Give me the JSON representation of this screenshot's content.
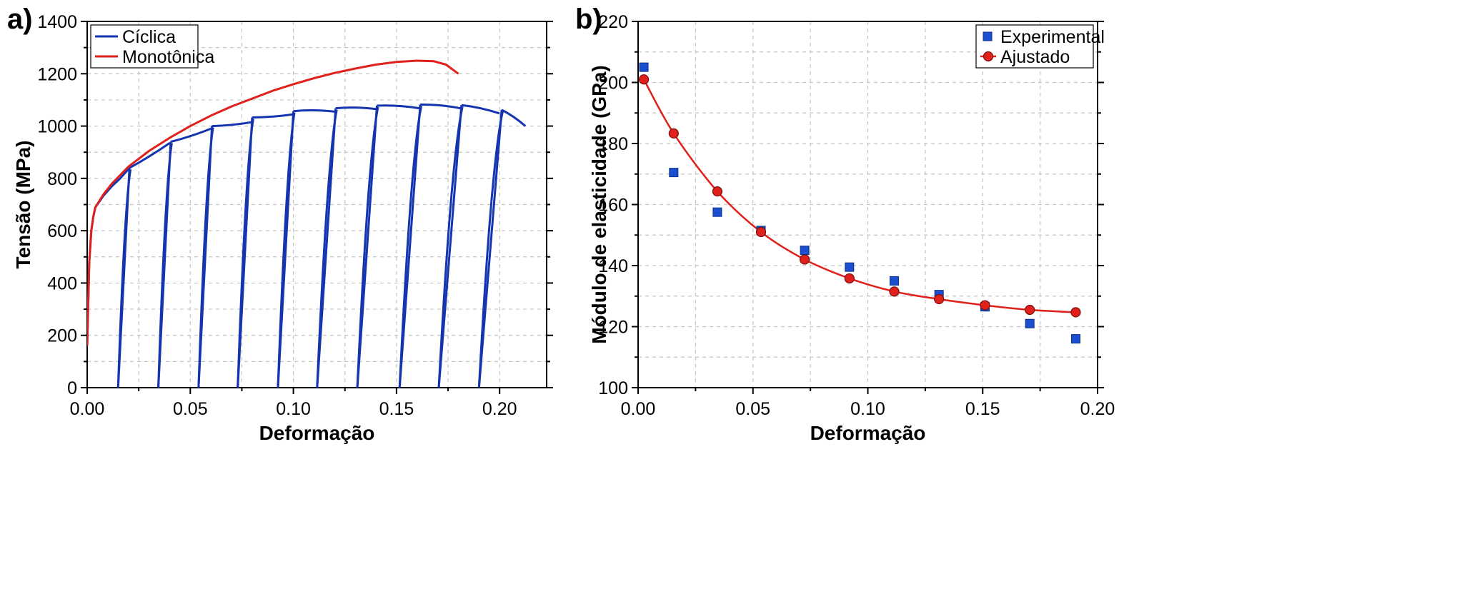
{
  "chart_data": [
    {
      "id": "a",
      "panel_label": "a)",
      "type": "line",
      "title": "",
      "xlabel": "Deformação",
      "ylabel": "Tensão (MPa)",
      "xlim": [
        0,
        0.2228
      ],
      "ylim": [
        0,
        1400
      ],
      "xticks": [
        0,
        0.05,
        0.1,
        0.15,
        0.2
      ],
      "xtick_labels": [
        "0.00",
        "0.05",
        "0.10",
        "0.15",
        "0.20"
      ],
      "yticks": [
        0,
        200,
        400,
        600,
        800,
        1000,
        1200,
        1400
      ],
      "ytick_labels": [
        "0",
        "200",
        "400",
        "600",
        "800",
        "1000",
        "1200",
        "1400"
      ],
      "grid": true,
      "legend_position": "top-left",
      "series": [
        {
          "name": "Cíclica",
          "color": "#1535b0",
          "style": "line",
          "envelope": {
            "x": [
              0,
              0.001,
              0.002,
              0.003,
              0.004,
              0.006,
              0.008,
              0.012,
              0.016,
              0.0205
            ],
            "y": [
              160,
              480,
              600,
              655,
              690,
              712,
              735,
              770,
              800,
              840
            ]
          },
          "cycles": [
            {
              "unload_x": 0.0205,
              "zero_x": 0.015,
              "peak": 840,
              "next_x": 0.04,
              "next_y": 935
            },
            {
              "unload_x": 0.0405,
              "zero_x": 0.0345,
              "peak": 940,
              "next_x": 0.06,
              "next_y": 990
            },
            {
              "unload_x": 0.0605,
              "zero_x": 0.054,
              "peak": 1000,
              "next_x": 0.08,
              "next_y": 1015
            },
            {
              "unload_x": 0.08,
              "zero_x": 0.073,
              "peak": 1033,
              "next_x": 0.1,
              "next_y": 1045
            },
            {
              "unload_x": 0.1,
              "zero_x": 0.0925,
              "peak": 1057,
              "next_x": 0.12,
              "next_y": 1055
            },
            {
              "unload_x": 0.1205,
              "zero_x": 0.1115,
              "peak": 1068,
              "next_x": 0.14,
              "next_y": 1065
            },
            {
              "unload_x": 0.1405,
              "zero_x": 0.131,
              "peak": 1078,
              "next_x": 0.161,
              "next_y": 1068
            },
            {
              "unload_x": 0.1615,
              "zero_x": 0.1515,
              "peak": 1082,
              "next_x": 0.181,
              "next_y": 1068
            },
            {
              "unload_x": 0.1815,
              "zero_x": 0.1705,
              "peak": 1080,
              "next_x": 0.2,
              "next_y": 1048
            },
            {
              "unload_x": 0.201,
              "zero_x": 0.19,
              "peak": 1062,
              "next_x": 0.2125,
              "next_y": 1000
            }
          ]
        },
        {
          "name": "Monotônica",
          "color": "#e0201b",
          "style": "line",
          "x": [
            0,
            0.001,
            0.002,
            0.003,
            0.004,
            0.006,
            0.008,
            0.012,
            0.02,
            0.03,
            0.04,
            0.05,
            0.06,
            0.07,
            0.08,
            0.09,
            0.1,
            0.11,
            0.12,
            0.13,
            0.14,
            0.15,
            0.16,
            0.168,
            0.174,
            0.18
          ],
          "y": [
            160,
            480,
            600,
            655,
            690,
            715,
            740,
            780,
            845,
            905,
            955,
            1000,
            1040,
            1075,
            1105,
            1135,
            1160,
            1183,
            1203,
            1220,
            1235,
            1245,
            1250,
            1248,
            1235,
            1200
          ]
        }
      ]
    },
    {
      "id": "b",
      "panel_label": "b)",
      "type": "scatter",
      "title": "",
      "xlabel": "Deformação",
      "ylabel": "Módulo de elasticidade (GPa)",
      "xlim": [
        0,
        0.2
      ],
      "ylim": [
        100,
        220
      ],
      "xticks": [
        0,
        0.05,
        0.1,
        0.15,
        0.2
      ],
      "xtick_labels": [
        "0.00",
        "0.05",
        "0.10",
        "0.15",
        "0.20"
      ],
      "yticks": [
        100,
        120,
        140,
        160,
        180,
        200,
        220
      ],
      "ytick_labels": [
        "100",
        "120",
        "140",
        "160",
        "180",
        "200",
        "220"
      ],
      "grid": true,
      "legend_position": "top-right",
      "series": [
        {
          "name": "Experimental",
          "color": "#1a4fd0",
          "marker": "square",
          "x": [
            0.0025,
            0.0155,
            0.0345,
            0.0535,
            0.0725,
            0.092,
            0.1115,
            0.131,
            0.151,
            0.1705,
            0.1905
          ],
          "y": [
            205,
            170.5,
            157.5,
            151.5,
            145,
            139.5,
            135,
            130.5,
            126.5,
            121,
            116
          ]
        },
        {
          "name": "Ajustado",
          "color": "#e0201b",
          "marker": "circle",
          "x": [
            0.0025,
            0.0155,
            0.0345,
            0.0535,
            0.0725,
            0.092,
            0.1115,
            0.131,
            0.151,
            0.1705,
            0.1905
          ],
          "y": [
            201,
            183.3,
            164.3,
            151,
            142,
            135.8,
            131.5,
            129,
            127,
            125.5,
            124.7
          ]
        }
      ]
    }
  ]
}
